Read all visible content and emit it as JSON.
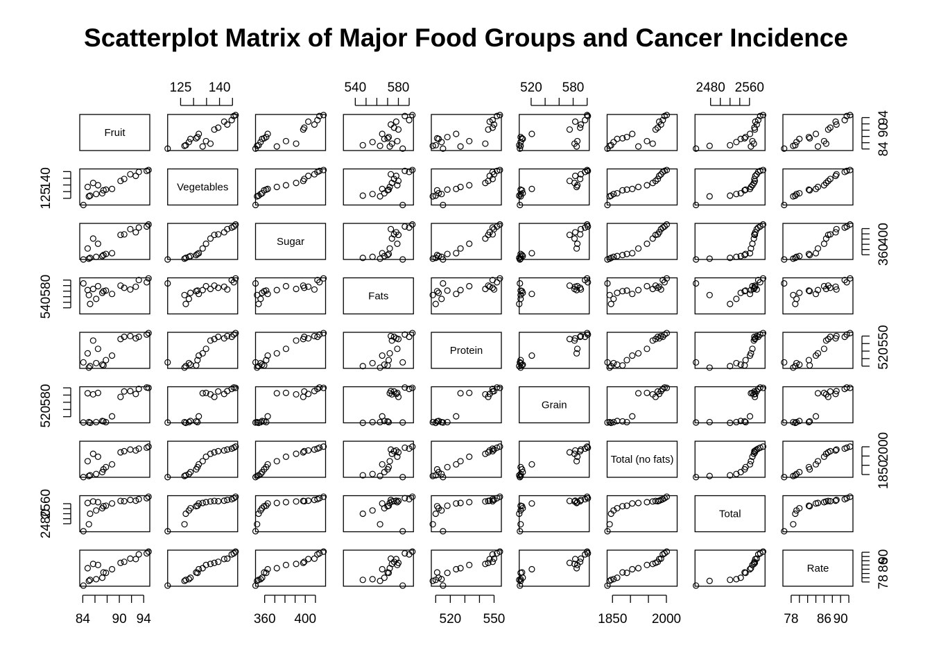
{
  "chart_data": {
    "type": "scatter",
    "subtype": "scatterplot-matrix",
    "title": "Scatterplot Matrix of Major Food Groups and Cancer Incidence",
    "variables": [
      "Fruit",
      "Vegetables",
      "Sugar",
      "Fats",
      "Protein",
      "Grain",
      "Total (no fats)",
      "Total",
      "Rate"
    ],
    "ranges": [
      [
        83.5,
        95.0
      ],
      [
        120.0,
        147.0
      ],
      [
        351.0,
        420.0
      ],
      [
        529.0,
        594.0
      ],
      [
        507.0,
        555.0
      ],
      [
        503.0,
        603.0
      ],
      [
        1835.0,
        2030.0
      ],
      [
        2448.0,
        2592.0
      ],
      [
        76.0,
        93.0
      ]
    ],
    "ticks": [
      [
        84,
        90,
        94
      ],
      [
        125,
        140
      ],
      [
        360,
        400
      ],
      [
        540,
        580
      ],
      [
        520,
        550
      ],
      [
        520,
        580
      ],
      [
        1850,
        2000
      ],
      [
        2480,
        2560
      ],
      [
        78,
        86,
        90
      ]
    ],
    "tick_marks": [
      [
        84,
        86,
        88,
        90,
        92,
        94
      ],
      [
        125,
        130,
        135,
        140,
        145
      ],
      [
        360,
        370,
        380,
        390,
        400,
        410
      ],
      [
        540,
        550,
        560,
        570,
        580,
        590
      ],
      [
        510,
        520,
        530,
        540,
        550
      ],
      [
        520,
        540,
        560,
        580,
        600
      ],
      [
        1850,
        1900,
        1950,
        2000
      ],
      [
        2480,
        2500,
        2520,
        2540,
        2560
      ],
      [
        78,
        80,
        82,
        84,
        86,
        88,
        90,
        92
      ]
    ],
    "observations": [
      [
        84.1,
        120.0,
        351.0,
        584.0,
        515.0,
        504.0,
        1836.0,
        2450.0,
        76.3
      ],
      [
        85.0,
        126.5,
        352.5,
        563.0,
        508.0,
        505.0,
        1842.0,
        2478.0,
        78.5
      ],
      [
        85.2,
        127.0,
        354.0,
        547.0,
        510.0,
        503.0,
        1846.0,
        2520.0,
        79.0
      ],
      [
        86.2,
        128.2,
        356.0,
        556.0,
        514.0,
        505.0,
        1853.0,
        2533.0,
        79.3
      ],
      [
        87.2,
        128.8,
        357.5,
        567.0,
        512.0,
        508.0,
        1863.0,
        2542.0,
        80.0
      ],
      [
        87.4,
        131.0,
        359.5,
        570.0,
        511.0,
        507.0,
        1878.0,
        2550.0,
        82.5
      ],
      [
        87.8,
        131.5,
        361.5,
        571.0,
        518.0,
        505.0,
        1890.0,
        2552.0,
        82.3
      ],
      [
        88.8,
        132.0,
        363.0,
        565.0,
        524.0,
        521.0,
        1905.0,
        2561.0,
        84.0
      ],
      [
        84.8,
        133.5,
        372.0,
        572.0,
        527.0,
        585.0,
        1922.0,
        2563.0,
        84.5
      ],
      [
        86.5,
        134.8,
        381.0,
        579.0,
        533.0,
        586.0,
        1946.0,
        2566.0,
        86.0
      ],
      [
        85.7,
        136.5,
        391.0,
        574.0,
        544.0,
        582.0,
        1962.0,
        2569.0,
        86.5
      ],
      [
        90.2,
        138.0,
        398.0,
        580.0,
        546.0,
        575.0,
        1970.0,
        2571.0,
        87.0
      ],
      [
        90.8,
        139.5,
        399.0,
        576.0,
        549.0,
        590.0,
        1976.0,
        2570.0,
        87.5
      ],
      [
        92.7,
        141.8,
        403.0,
        578.0,
        547.0,
        583.0,
        1980.0,
        2572.0,
        88.8
      ],
      [
        91.8,
        143.0,
        409.0,
        573.0,
        550.0,
        591.0,
        1985.0,
        2575.0,
        89.0
      ],
      [
        93.2,
        144.7,
        412.0,
        590.0,
        549.0,
        597.0,
        1990.0,
        2578.0,
        91.0
      ],
      [
        94.5,
        145.5,
        414.0,
        586.0,
        552.0,
        601.0,
        1995.0,
        2582.0,
        91.5
      ],
      [
        94.8,
        146.2,
        418.0,
        593.0,
        554.0,
        600.0,
        2001.0,
        2588.0,
        92.3
      ]
    ],
    "axis_labels": {
      "top": [
        1,
        3,
        5,
        7
      ],
      "bottom": [
        0,
        2,
        4,
        6,
        8
      ],
      "right": [
        0,
        2,
        4,
        6,
        8
      ],
      "left": [
        1,
        3,
        5,
        7
      ]
    },
    "point_symbol": "open circle",
    "grid": false,
    "legend": "none"
  }
}
